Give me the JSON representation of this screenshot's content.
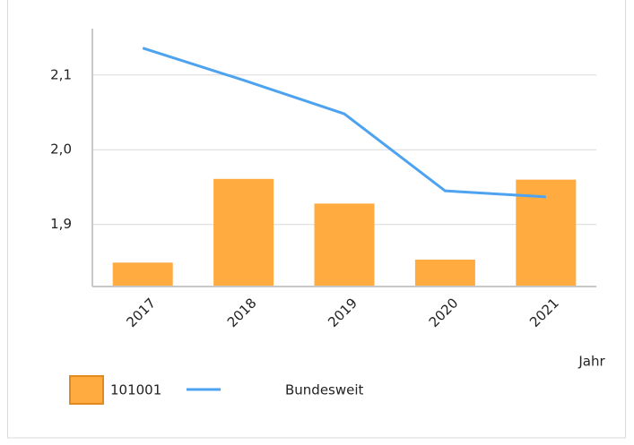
{
  "chart_data": {
    "type": "bar",
    "categories": [
      "2017",
      "2018",
      "2019",
      "2020",
      "2021"
    ],
    "x_label": "Jahr",
    "ylim": [
      1.817,
      2.162
    ],
    "yticks": [
      {
        "value": 1.9,
        "label": "1,9"
      },
      {
        "value": 2.0,
        "label": "2,0"
      },
      {
        "value": 2.1,
        "label": "2,1"
      }
    ],
    "grid": true,
    "series": [
      {
        "name": "101001",
        "type": "bar",
        "color": "#ffab40",
        "values": [
          1.849,
          1.961,
          1.928,
          1.853,
          1.96
        ]
      },
      {
        "name": "Bundesweit",
        "type": "line",
        "color": "#4da3f0",
        "values": [
          2.136,
          2.093,
          2.048,
          1.945,
          1.937
        ]
      }
    ]
  }
}
